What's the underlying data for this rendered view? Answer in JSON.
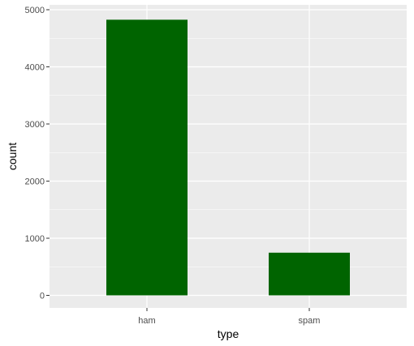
{
  "chart_data": {
    "type": "bar",
    "categories": [
      "ham",
      "spam"
    ],
    "values": [
      4825,
      747
    ],
    "title": "",
    "xlabel": "type",
    "ylabel": "count",
    "ylim": [
      0,
      5000
    ],
    "yticks": [
      0,
      1000,
      2000,
      3000,
      4000,
      5000
    ],
    "grid": true,
    "legend": "none",
    "colors": {
      "bar": "#006400",
      "panel": "#ebebeb",
      "grid": "#ffffff",
      "tick_text": "#4d4d4d",
      "tick_mark": "#333333",
      "axis_title": "#000000"
    }
  }
}
